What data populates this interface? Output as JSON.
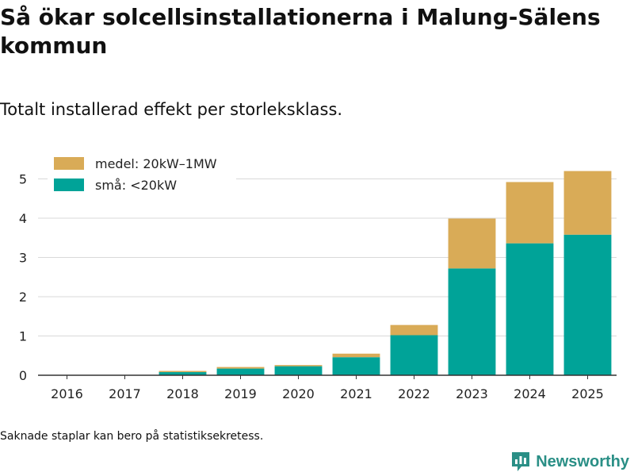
{
  "title": "Så ökar solcellsinstallationerna i Malung-Sälens kommun",
  "subtitle": "Totalt installerad effekt per storleksklass.",
  "footnote": "Saknade staplar kan bero på statistiksekretess.",
  "brand": {
    "name": "Newsworthy",
    "icon": "newsworthy-logo-icon"
  },
  "colors": {
    "small": "#00a398",
    "medium": "#d9ab57",
    "grid": "#d9d9d9",
    "axis": "#333333",
    "brand": "#2a8f86"
  },
  "chart_data": {
    "type": "bar",
    "stacked": true,
    "categories": [
      "2016",
      "2017",
      "2018",
      "2019",
      "2020",
      "2021",
      "2022",
      "2023",
      "2024",
      "2025"
    ],
    "series": [
      {
        "name": "små: <20kW",
        "key": "small",
        "values": [
          0,
          0,
          0.08,
          0.17,
          0.23,
          0.46,
          1.02,
          2.72,
          3.36,
          3.58
        ]
      },
      {
        "name": "medel: 20kW–1MW",
        "key": "medium",
        "values": [
          0,
          0,
          0.03,
          0.04,
          0.03,
          0.09,
          0.26,
          1.27,
          1.56,
          1.62
        ]
      }
    ],
    "legend": [
      "medel: 20kW–1MW",
      "små: <20kW"
    ],
    "yticks": [
      0,
      1,
      2,
      3,
      4,
      5
    ],
    "ylim": [
      0,
      5.5
    ],
    "xlabel": "",
    "ylabel": "",
    "grid": true,
    "legend_position": "top-left"
  }
}
